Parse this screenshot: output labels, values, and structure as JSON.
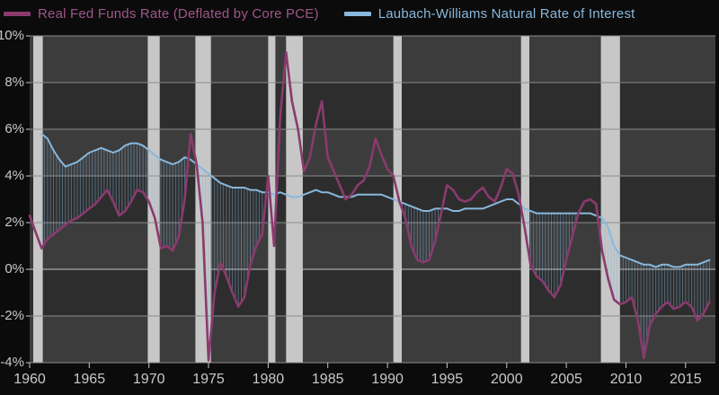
{
  "legend": {
    "series1_label": "Real Fed Funds Rate (Deflated by Core PCE)",
    "series2_label": "Laubach-Williams Natural Rate of Interest"
  },
  "colors": {
    "background": "#0b0b0b",
    "band_light": "#3c3c3c",
    "band_dark": "#2d2d2d",
    "recession": "#c7c7c7",
    "grid": "#8c8c8c",
    "grid_zero": "#c4c4c4",
    "axis_text": "#c9c9c9",
    "purple": "#8a3a6e",
    "purple_text": "#a0568a",
    "blue": "#88b8dc",
    "hatch": "rgba(130,180,215,0.45)"
  },
  "chart_data": {
    "type": "line",
    "title": "",
    "xlabel": "",
    "ylabel": "",
    "x_range": [
      1960,
      2017.5
    ],
    "y_range": [
      -4,
      10
    ],
    "grid": "horizontal",
    "legend_position": "top",
    "y_ticks": [
      {
        "value": 10,
        "label": "10%"
      },
      {
        "value": 8,
        "label": "8%"
      },
      {
        "value": 6,
        "label": "6%"
      },
      {
        "value": 4,
        "label": "4%"
      },
      {
        "value": 2,
        "label": "2%"
      },
      {
        "value": 0,
        "label": "0%"
      },
      {
        "value": -2,
        "label": "-2%"
      },
      {
        "value": -4,
        "label": "-4%"
      }
    ],
    "x_ticks": [
      1960,
      1965,
      1970,
      1975,
      1980,
      1985,
      1990,
      1995,
      2000,
      2005,
      2010,
      2015
    ],
    "recessions": [
      [
        1960.3,
        1961.1
      ],
      [
        1969.9,
        1970.9
      ],
      [
        1973.9,
        1975.2
      ],
      [
        1980.0,
        1980.6
      ],
      [
        1981.5,
        1982.9
      ],
      [
        1990.5,
        1991.2
      ],
      [
        2001.2,
        2001.9
      ],
      [
        2007.9,
        2009.5
      ]
    ],
    "hatch_between_series": true,
    "series": [
      {
        "name": "Real Fed Funds Rate (Deflated by Core PCE)",
        "color": "#8a3a6e",
        "width": 2.6,
        "start": 1960.0,
        "step": 0.5,
        "values": [
          2.3,
          1.6,
          0.9,
          1.3,
          1.5,
          1.7,
          1.9,
          2.1,
          2.2,
          2.4,
          2.6,
          2.8,
          3.1,
          3.4,
          2.9,
          2.3,
          2.5,
          2.9,
          3.4,
          3.3,
          2.9,
          2.2,
          0.9,
          1.0,
          0.8,
          1.4,
          3.0,
          5.8,
          4.5,
          2.0,
          -3.9,
          -1.0,
          0.3,
          -0.3,
          -1.0,
          -1.6,
          -1.2,
          0.2,
          1.0,
          1.5,
          4.0,
          1.0,
          6.5,
          9.3,
          7.2,
          6.0,
          4.2,
          4.8,
          6.2,
          7.2,
          4.8,
          4.2,
          3.6,
          3.0,
          3.2,
          3.6,
          3.8,
          4.4,
          5.6,
          4.9,
          4.3,
          4.0,
          2.9,
          2.2,
          1.0,
          0.4,
          0.3,
          0.4,
          1.2,
          2.4,
          3.6,
          3.4,
          3.0,
          2.9,
          3.0,
          3.3,
          3.5,
          3.1,
          2.9,
          3.5,
          4.3,
          4.1,
          3.2,
          1.8,
          0.2,
          -0.3,
          -0.5,
          -0.9,
          -1.2,
          -0.7,
          0.4,
          1.4,
          2.4,
          2.9,
          3.0,
          2.8,
          0.8,
          -0.4,
          -1.3,
          -1.5,
          -1.4,
          -1.2,
          -2.2,
          -3.8,
          -2.4,
          -1.9,
          -1.6,
          -1.4,
          -1.7,
          -1.6,
          -1.4,
          -1.6,
          -2.2,
          -1.9,
          -1.4
        ]
      },
      {
        "name": "Laubach-Williams Natural Rate of Interest",
        "color": "#88b8dc",
        "width": 2.0,
        "start": 1961.0,
        "step": 0.5,
        "values": [
          5.8,
          5.6,
          5.1,
          4.7,
          4.4,
          4.5,
          4.6,
          4.8,
          5.0,
          5.1,
          5.2,
          5.1,
          5.0,
          5.1,
          5.3,
          5.4,
          5.4,
          5.3,
          5.1,
          4.9,
          4.7,
          4.6,
          4.5,
          4.6,
          4.8,
          4.7,
          4.5,
          4.3,
          4.1,
          3.9,
          3.7,
          3.6,
          3.5,
          3.5,
          3.5,
          3.4,
          3.4,
          3.3,
          3.3,
          3.2,
          3.3,
          3.2,
          3.1,
          3.1,
          3.2,
          3.3,
          3.4,
          3.3,
          3.3,
          3.2,
          3.1,
          3.1,
          3.1,
          3.2,
          3.2,
          3.2,
          3.2,
          3.2,
          3.1,
          3.0,
          2.9,
          2.8,
          2.7,
          2.6,
          2.5,
          2.5,
          2.6,
          2.6,
          2.6,
          2.5,
          2.5,
          2.6,
          2.6,
          2.6,
          2.6,
          2.7,
          2.8,
          2.9,
          3.0,
          3.0,
          2.8,
          2.6,
          2.5,
          2.4,
          2.4,
          2.4,
          2.4,
          2.4,
          2.4,
          2.4,
          2.4,
          2.4,
          2.4,
          2.3,
          2.2,
          1.8,
          1.0,
          0.6,
          0.5,
          0.4,
          0.3,
          0.2,
          0.2,
          0.1,
          0.2,
          0.2,
          0.1,
          0.1,
          0.2,
          0.2,
          0.2,
          0.3,
          0.4
        ]
      }
    ]
  }
}
